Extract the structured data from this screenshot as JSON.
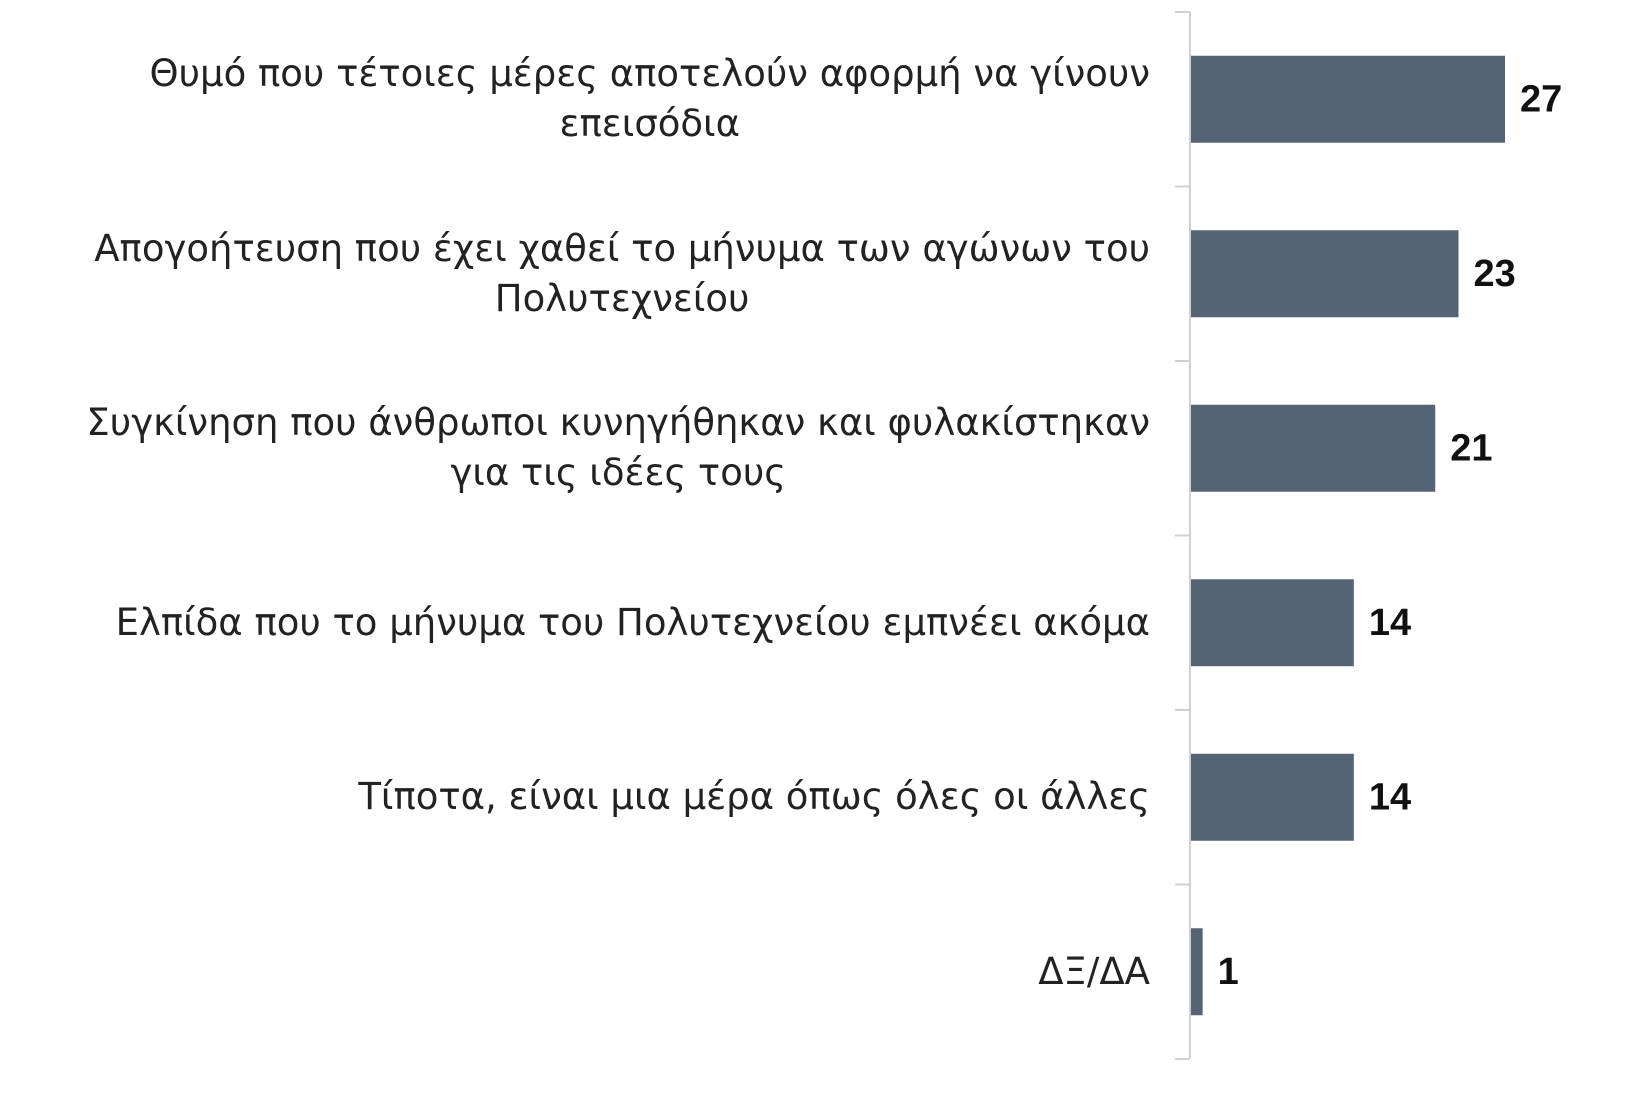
{
  "chart_data": {
    "type": "bar",
    "orientation": "horizontal",
    "categories": [
      [
        "Θυμό που τέτοιες μέρες αποτελούν αφορμή να γίνουν",
        "επεισόδια"
      ],
      [
        "Απογοήτευση που έχει χαθεί το μήνυμα των αγώνων του",
        "Πολυτεχνείου"
      ],
      [
        "Συγκίνηση που άνθρωποι κυνηγήθηκαν και φυλακίστηκαν",
        "για τις ιδέες τους"
      ],
      [
        "Ελπίδα που το μήνυμα του Πολυτεχνείου εμπνέει ακόμα"
      ],
      [
        "Τίποτα, είναι μια μέρα όπως όλες οι άλλες"
      ],
      [
        "ΔΞ/ΔΑ"
      ]
    ],
    "values": [
      27,
      23,
      21,
      14,
      14,
      1
    ],
    "color": "#556474"
  }
}
